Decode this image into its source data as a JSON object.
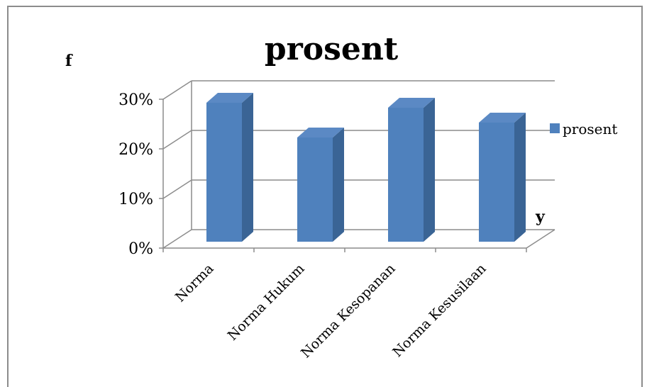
{
  "chart_data": {
    "type": "bar",
    "title": "prosent",
    "categories": [
      "Norma",
      "Norma Hukum",
      "Norma Kesopanan",
      "Norma Kesusilaan"
    ],
    "series": [
      {
        "name": "prosent",
        "values": [
          0.28,
          0.21,
          0.27,
          0.24
        ],
        "color": "#4f81bd"
      }
    ],
    "ylabel": "f",
    "xlabel": "y",
    "ylim": [
      0,
      0.3
    ],
    "yticks": [
      "0%",
      "10%",
      "20%",
      "30%"
    ],
    "grid": true,
    "legend": "right",
    "three_d": true
  }
}
